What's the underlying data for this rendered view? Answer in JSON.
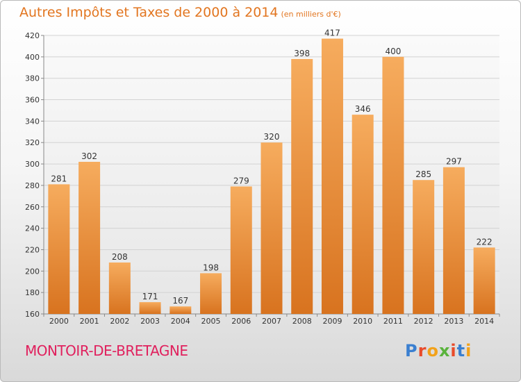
{
  "header": {
    "title": "Autres Impôts et Taxes de 2000 à 2014",
    "subtitle": "(en milliers d'€)"
  },
  "commune": "MONTOIR-DE-BRETAGNE",
  "logo": {
    "text": "Proxiti",
    "letter_colors": [
      "#3a7fd0",
      "#e94b2a",
      "#f2a21a",
      "#59b33c",
      "#e94b2a",
      "#3a7fd0",
      "#f2a21a"
    ]
  },
  "colors": {
    "bar_top": "#f6ac5e",
    "bar_bottom": "#d8731f",
    "title": "#e2751f",
    "commune": "#e0205d"
  },
  "chart_data": {
    "type": "bar",
    "categories": [
      "2000",
      "2001",
      "2002",
      "2003",
      "2004",
      "2005",
      "2006",
      "2007",
      "2008",
      "2009",
      "2010",
      "2011",
      "2012",
      "2013",
      "2014"
    ],
    "values": [
      281,
      302,
      208,
      171,
      167,
      198,
      279,
      320,
      398,
      417,
      346,
      400,
      285,
      297,
      222
    ],
    "title": "Autres Impôts et Taxes de 2000 à 2014",
    "xlabel": "",
    "ylabel": "",
    "ylim": [
      160,
      420
    ],
    "yticks": [
      160,
      180,
      200,
      220,
      240,
      260,
      280,
      300,
      320,
      340,
      360,
      380,
      400,
      420
    ],
    "grid": true,
    "data_labels": true
  }
}
